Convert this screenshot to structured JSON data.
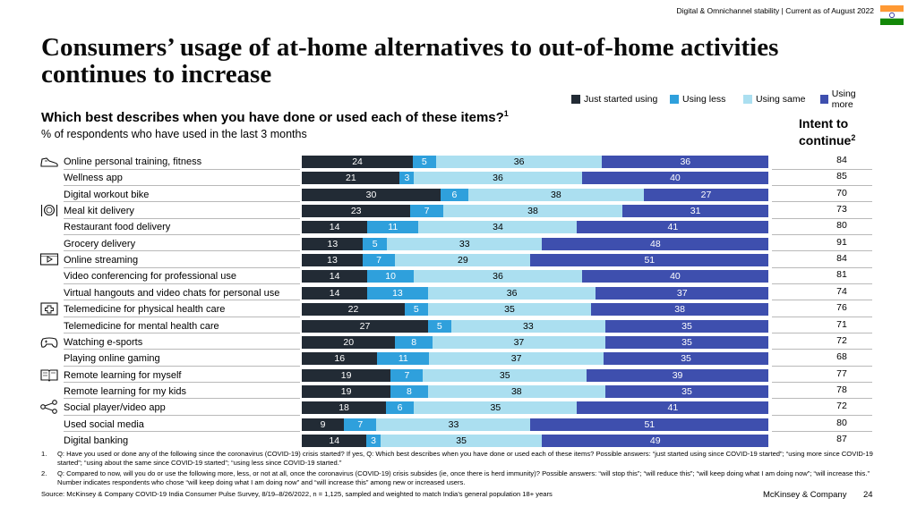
{
  "header": {
    "topline": "Digital & Omnichannel stability | Current as of August 2022",
    "flag_colors": [
      "#FF9933",
      "#FFFFFF",
      "#138808"
    ]
  },
  "title": "Consumers’ usage of at-home alternatives to out-of-home activities continues to increase",
  "legend": {
    "items": [
      {
        "label": "Just started using",
        "color": "#222b35"
      },
      {
        "label": "Using less",
        "color": "#2fa0dc"
      },
      {
        "label": "Using same",
        "color": "#abdff0"
      },
      {
        "label": "Using more",
        "color": "#3e4fae"
      }
    ]
  },
  "question": {
    "text": "Which best describes when you have done or used each of these items?",
    "sup": "1",
    "subtitle": "% of respondents who have used in the last 3 months"
  },
  "intent_header": {
    "text": "Intent to continue",
    "sup": "2"
  },
  "chart_data": {
    "type": "bar",
    "stacked": true,
    "orientation": "horizontal",
    "categories": [
      "Online personal training, fitness",
      "Wellness app",
      "Digital workout bike",
      "Meal kit delivery",
      "Restaurant food delivery",
      "Grocery delivery",
      "Online streaming",
      "Video conferencing for professional use",
      "Virtual hangouts and video chats for personal use",
      "Telemedicine for physical health care",
      "Telemedicine for mental health care",
      "Watching e-sports",
      "Playing online gaming",
      "Remote learning for myself",
      "Remote learning for my kids",
      "Social player/video app",
      "Used social media",
      "Digital banking"
    ],
    "series": [
      {
        "name": "Just started using",
        "values": [
          24,
          21,
          30,
          23,
          14,
          13,
          13,
          14,
          14,
          22,
          27,
          20,
          16,
          19,
          19,
          18,
          9,
          14
        ]
      },
      {
        "name": "Using less",
        "values": [
          5,
          3,
          6,
          7,
          11,
          5,
          7,
          10,
          13,
          5,
          5,
          8,
          11,
          7,
          8,
          6,
          7,
          3
        ]
      },
      {
        "name": "Using same",
        "values": [
          36,
          36,
          38,
          38,
          34,
          33,
          29,
          36,
          36,
          35,
          33,
          37,
          37,
          35,
          38,
          35,
          33,
          35
        ]
      },
      {
        "name": "Using more",
        "values": [
          36,
          40,
          27,
          31,
          41,
          48,
          51,
          40,
          37,
          38,
          35,
          35,
          35,
          39,
          35,
          41,
          51,
          49
        ]
      }
    ],
    "intent_to_continue": [
      84,
      85,
      70,
      73,
      80,
      91,
      84,
      81,
      74,
      76,
      71,
      72,
      68,
      77,
      78,
      72,
      80,
      87
    ],
    "group_icons": [
      {
        "row": 0,
        "icon": "sneaker-icon"
      },
      {
        "row": 3,
        "icon": "meal-plate-icon"
      },
      {
        "row": 6,
        "icon": "video-play-icon"
      },
      {
        "row": 9,
        "icon": "medical-cross-icon"
      },
      {
        "row": 11,
        "icon": "gamepad-icon"
      },
      {
        "row": 13,
        "icon": "book-icon"
      },
      {
        "row": 15,
        "icon": "share-icon"
      }
    ]
  },
  "footnotes": [
    {
      "num": "1.",
      "text": "Q: Have you used or done any of the following since the coronavirus (COVID-19) crisis started? If yes, Q: Which best describes when you have done or used each of these items? Possible answers: “just started using since COVID-19 started”; “using more since COVID-19 started”; “using about the same since COVID-19 started”; “using less since COVID-19 started.”"
    },
    {
      "num": "2.",
      "text": "Q: Compared to now, will you do or use the following more, less, or not at all, once the coronavirus (COVID-19) crisis subsides (ie, once there is herd immunity)? Possible answers: “will stop this”; “will reduce this”; “will keep doing what I am doing now”; “will increase this.” Number indicates respondents who chose “will keep doing what I am doing now” and “will increase this” among new or increased users."
    }
  ],
  "source": "Source: McKinsey & Company COVID-19 India Consumer Pulse Survey, 8/19–8/26/2022, n = 1,125, sampled and weighted to match India’s general population 18+ years",
  "brand": "McKinsey & Company",
  "page_number": "24"
}
